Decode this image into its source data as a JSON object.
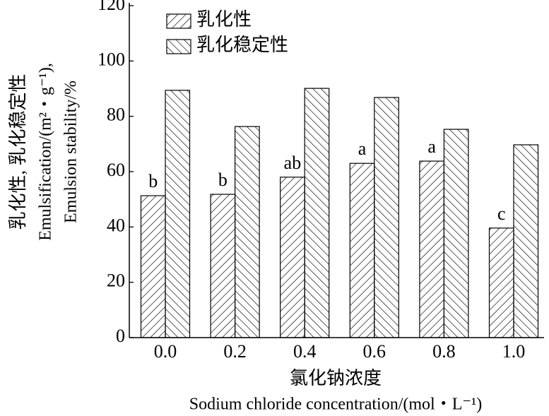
{
  "chart_data": {
    "type": "bar",
    "y_label_lines": [
      "乳化性, 乳化稳定性",
      "Emulsification/(m²・g⁻¹),",
      "Emulsion stability/%"
    ],
    "x_label_lines": [
      "氯化钠浓度",
      "Sodium chloride concentration/(mol・L⁻¹)"
    ],
    "categories": [
      "0.0",
      "0.2",
      "0.4",
      "0.6",
      "0.8",
      "1.0"
    ],
    "series": [
      {
        "name": "乳化性",
        "color": "#000000",
        "hatch": "/",
        "values": [
          51.3,
          51.8,
          58.0,
          63.0,
          63.8,
          39.6
        ],
        "annotations": [
          "b",
          "b",
          "ab",
          "a",
          "a",
          "c"
        ]
      },
      {
        "name": "乳化稳定性",
        "color": "#000000",
        "hatch": "\\",
        "values": [
          89.4,
          76.3,
          90.1,
          86.8,
          75.3,
          69.7
        ]
      }
    ],
    "ylim": [
      0,
      120
    ],
    "yticks": [
      0,
      20,
      40,
      60,
      80,
      100,
      120
    ],
    "grid": false,
    "legend": "upper left"
  }
}
